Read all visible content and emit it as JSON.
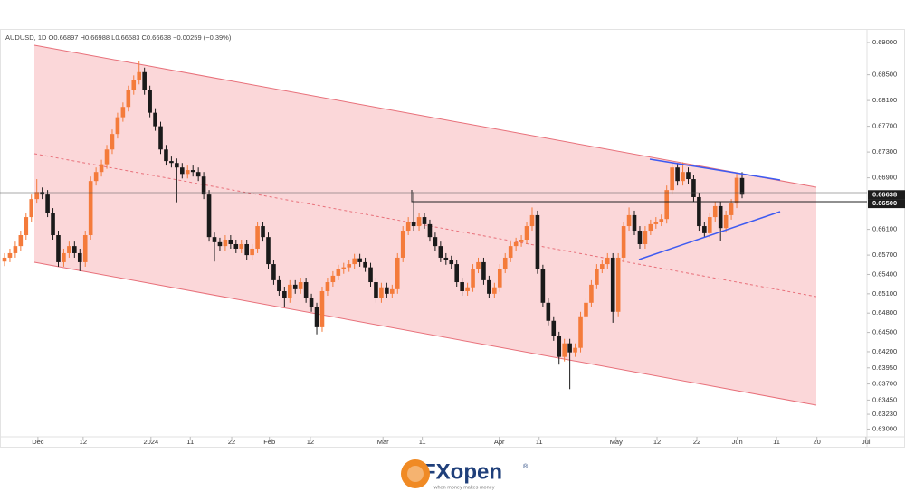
{
  "chart_data": {
    "type": "candlestick",
    "title": "AUDUSD, 1D  O0.66897  H0.66988  L0.66583  C0.66638  −0.00259 (−0.39%)",
    "up_color": "#f47b3b",
    "down_color": "#1a1a1a",
    "ylim": [
      0.6288,
      0.692
    ],
    "xlim": [
      -0.84,
      160.2
    ],
    "yticks": [
      {
        "value": 0.69,
        "label": "0.69000"
      },
      {
        "value": 0.685,
        "label": "0.68500"
      },
      {
        "value": 0.681,
        "label": "0.68100"
      },
      {
        "value": 0.677,
        "label": "0.67700"
      },
      {
        "value": 0.673,
        "label": "0.67300"
      },
      {
        "value": 0.669,
        "label": "0.66900"
      },
      {
        "value": 0.661,
        "label": "0.66100"
      },
      {
        "value": 0.657,
        "label": "0.65700"
      },
      {
        "value": 0.654,
        "label": "0.65400"
      },
      {
        "value": 0.651,
        "label": "0.65100"
      },
      {
        "value": 0.648,
        "label": "0.64800"
      },
      {
        "value": 0.645,
        "label": "0.64500"
      },
      {
        "value": 0.642,
        "label": "0.64200"
      },
      {
        "value": 0.6395,
        "label": "0.63950"
      },
      {
        "value": 0.637,
        "label": "0.63700"
      },
      {
        "value": 0.6345,
        "label": "0.63450"
      },
      {
        "value": 0.6323,
        "label": "0.63230"
      },
      {
        "value": 0.63,
        "label": "0.63000"
      }
    ],
    "price_labels": [
      {
        "value": 0.66638,
        "label": "0.66638"
      },
      {
        "value": 0.665,
        "label": "0.66500"
      }
    ],
    "xticks": [
      {
        "value": 6.2,
        "label": "Dec"
      },
      {
        "value": 14.6,
        "label": "12"
      },
      {
        "value": 27.2,
        "label": "2024"
      },
      {
        "value": 34.5,
        "label": "11"
      },
      {
        "value": 42.2,
        "label": "22"
      },
      {
        "value": 49.2,
        "label": "Feb"
      },
      {
        "value": 56.8,
        "label": "12"
      },
      {
        "value": 70.3,
        "label": "Mar"
      },
      {
        "value": 77.6,
        "label": "11"
      },
      {
        "value": 91.9,
        "label": "Apr"
      },
      {
        "value": 99.3,
        "label": "11"
      },
      {
        "value": 113.6,
        "label": "May"
      },
      {
        "value": 121.2,
        "label": "12"
      },
      {
        "value": 128.6,
        "label": "22"
      },
      {
        "value": 136.1,
        "label": "Jun"
      },
      {
        "value": 143.4,
        "label": "11"
      },
      {
        "value": 150.9,
        "label": "20"
      },
      {
        "value": 160,
        "label": "Jul"
      }
    ],
    "ohlc": [
      [
        0.656,
        0.6573,
        0.6553,
        0.6566
      ],
      [
        0.6566,
        0.658,
        0.6559,
        0.6573
      ],
      [
        0.6573,
        0.6591,
        0.6566,
        0.6584
      ],
      [
        0.6584,
        0.6608,
        0.6577,
        0.6601
      ],
      [
        0.6601,
        0.6636,
        0.6594,
        0.6629
      ],
      [
        0.6629,
        0.6664,
        0.6622,
        0.6657
      ],
      [
        0.6657,
        0.6688,
        0.665,
        0.6668
      ],
      [
        0.6668,
        0.6675,
        0.6657,
        0.6664
      ],
      [
        0.6664,
        0.6671,
        0.6629,
        0.6636
      ],
      [
        0.6636,
        0.6643,
        0.6594,
        0.6601
      ],
      [
        0.6601,
        0.6608,
        0.6552,
        0.6559
      ],
      [
        0.6559,
        0.658,
        0.6552,
        0.6573
      ],
      [
        0.6573,
        0.6591,
        0.6566,
        0.6584
      ],
      [
        0.6584,
        0.6591,
        0.6566,
        0.6573
      ],
      [
        0.6573,
        0.658,
        0.6545,
        0.6559
      ],
      [
        0.6559,
        0.6608,
        0.6552,
        0.6601
      ],
      [
        0.6601,
        0.6692,
        0.6594,
        0.6685
      ],
      [
        0.6685,
        0.6706,
        0.6678,
        0.6699
      ],
      [
        0.6699,
        0.6718,
        0.6692,
        0.6711
      ],
      [
        0.6711,
        0.6741,
        0.6704,
        0.6734
      ],
      [
        0.6734,
        0.6765,
        0.6727,
        0.6758
      ],
      [
        0.6758,
        0.6791,
        0.6751,
        0.6784
      ],
      [
        0.6784,
        0.6807,
        0.6777,
        0.68
      ],
      [
        0.68,
        0.6833,
        0.6793,
        0.6826
      ],
      [
        0.6826,
        0.6849,
        0.6819,
        0.6842
      ],
      [
        0.6842,
        0.6871,
        0.6835,
        0.6854
      ],
      [
        0.6854,
        0.6861,
        0.6819,
        0.6826
      ],
      [
        0.6826,
        0.6833,
        0.6784,
        0.6791
      ],
      [
        0.6791,
        0.6798,
        0.6763,
        0.677
      ],
      [
        0.677,
        0.6777,
        0.6727,
        0.6734
      ],
      [
        0.6734,
        0.6741,
        0.6709,
        0.6716
      ],
      [
        0.6716,
        0.6723,
        0.6706,
        0.6713
      ],
      [
        0.6713,
        0.672,
        0.6652,
        0.6706
      ],
      [
        0.6706,
        0.6713,
        0.6689,
        0.6696
      ],
      [
        0.6696,
        0.6709,
        0.6689,
        0.6702
      ],
      [
        0.6702,
        0.6709,
        0.6692,
        0.6699
      ],
      [
        0.6699,
        0.6706,
        0.6685,
        0.6692
      ],
      [
        0.6692,
        0.6699,
        0.6657,
        0.6664
      ],
      [
        0.6664,
        0.6671,
        0.6591,
        0.6598
      ],
      [
        0.6598,
        0.6605,
        0.656,
        0.659
      ],
      [
        0.659,
        0.6597,
        0.6577,
        0.6584
      ],
      [
        0.6584,
        0.6601,
        0.6577,
        0.6594
      ],
      [
        0.6594,
        0.6601,
        0.658,
        0.6587
      ],
      [
        0.6587,
        0.6594,
        0.6573,
        0.658
      ],
      [
        0.658,
        0.6594,
        0.6573,
        0.6587
      ],
      [
        0.6587,
        0.6594,
        0.6563,
        0.657
      ],
      [
        0.657,
        0.6587,
        0.6563,
        0.658
      ],
      [
        0.658,
        0.6622,
        0.6573,
        0.6615
      ],
      [
        0.6615,
        0.6622,
        0.6591,
        0.6598
      ],
      [
        0.6598,
        0.6605,
        0.6549,
        0.6556
      ],
      [
        0.6556,
        0.6563,
        0.6524,
        0.6531
      ],
      [
        0.6531,
        0.6538,
        0.6507,
        0.6514
      ],
      [
        0.6514,
        0.6521,
        0.6489,
        0.6503
      ],
      [
        0.6503,
        0.6531,
        0.6496,
        0.6524
      ],
      [
        0.6524,
        0.6531,
        0.651,
        0.6517
      ],
      [
        0.6517,
        0.6535,
        0.651,
        0.6528
      ],
      [
        0.6528,
        0.6535,
        0.6496,
        0.6503
      ],
      [
        0.6503,
        0.651,
        0.6482,
        0.6489
      ],
      [
        0.6489,
        0.6496,
        0.6447,
        0.6458
      ],
      [
        0.6458,
        0.6521,
        0.6451,
        0.6514
      ],
      [
        0.6514,
        0.6535,
        0.6507,
        0.6528
      ],
      [
        0.6528,
        0.6545,
        0.6521,
        0.6538
      ],
      [
        0.6538,
        0.6555,
        0.6531,
        0.6548
      ],
      [
        0.6548,
        0.6558,
        0.6541,
        0.6551
      ],
      [
        0.6551,
        0.6563,
        0.6544,
        0.6556
      ],
      [
        0.6556,
        0.6572,
        0.6549,
        0.6565
      ],
      [
        0.6565,
        0.6572,
        0.6552,
        0.6559
      ],
      [
        0.6559,
        0.6566,
        0.6544,
        0.6551
      ],
      [
        0.6551,
        0.6558,
        0.6521,
        0.6528
      ],
      [
        0.6528,
        0.6535,
        0.6496,
        0.6503
      ],
      [
        0.6503,
        0.6527,
        0.6496,
        0.652
      ],
      [
        0.652,
        0.6527,
        0.6503,
        0.651
      ],
      [
        0.651,
        0.6524,
        0.6503,
        0.6517
      ],
      [
        0.6517,
        0.6573,
        0.651,
        0.6566
      ],
      [
        0.6566,
        0.6615,
        0.6559,
        0.6608
      ],
      [
        0.6608,
        0.6629,
        0.6601,
        0.6622
      ],
      [
        0.6622,
        0.6668,
        0.6608,
        0.6615
      ],
      [
        0.6615,
        0.6636,
        0.6608,
        0.6629
      ],
      [
        0.6629,
        0.6636,
        0.6611,
        0.6618
      ],
      [
        0.6618,
        0.6625,
        0.6591,
        0.6598
      ],
      [
        0.6598,
        0.6605,
        0.6577,
        0.6584
      ],
      [
        0.6584,
        0.6591,
        0.6559,
        0.6566
      ],
      [
        0.6566,
        0.6573,
        0.6555,
        0.6562
      ],
      [
        0.6562,
        0.6569,
        0.6549,
        0.6556
      ],
      [
        0.6556,
        0.6563,
        0.6521,
        0.6528
      ],
      [
        0.6528,
        0.6535,
        0.6507,
        0.6514
      ],
      [
        0.6514,
        0.6527,
        0.6507,
        0.652
      ],
      [
        0.652,
        0.6556,
        0.6513,
        0.6549
      ],
      [
        0.6549,
        0.6566,
        0.6542,
        0.6559
      ],
      [
        0.6559,
        0.6566,
        0.6524,
        0.6531
      ],
      [
        0.6531,
        0.6538,
        0.6503,
        0.651
      ],
      [
        0.651,
        0.6527,
        0.6503,
        0.652
      ],
      [
        0.652,
        0.6556,
        0.6513,
        0.6549
      ],
      [
        0.6549,
        0.6573,
        0.6542,
        0.6566
      ],
      [
        0.6566,
        0.6591,
        0.6559,
        0.6584
      ],
      [
        0.6584,
        0.6597,
        0.6577,
        0.659
      ],
      [
        0.659,
        0.6601,
        0.6583,
        0.6594
      ],
      [
        0.6594,
        0.6622,
        0.6587,
        0.6615
      ],
      [
        0.6615,
        0.6644,
        0.6608,
        0.6632
      ],
      [
        0.6632,
        0.6639,
        0.6541,
        0.6548
      ],
      [
        0.6548,
        0.6555,
        0.6489,
        0.6496
      ],
      [
        0.6496,
        0.6503,
        0.6461,
        0.6468
      ],
      [
        0.6468,
        0.6475,
        0.6437,
        0.6444
      ],
      [
        0.6444,
        0.6451,
        0.64,
        0.6412
      ],
      [
        0.6412,
        0.644,
        0.6405,
        0.6433
      ],
      [
        0.6433,
        0.644,
        0.6362,
        0.6419
      ],
      [
        0.6419,
        0.6433,
        0.6412,
        0.6426
      ],
      [
        0.6426,
        0.6482,
        0.6419,
        0.6475
      ],
      [
        0.6475,
        0.6503,
        0.6468,
        0.6496
      ],
      [
        0.6496,
        0.6531,
        0.6489,
        0.6524
      ],
      [
        0.6524,
        0.6556,
        0.6517,
        0.6549
      ],
      [
        0.6549,
        0.6563,
        0.6542,
        0.6556
      ],
      [
        0.6556,
        0.6573,
        0.6549,
        0.6566
      ],
      [
        0.6566,
        0.6573,
        0.6465,
        0.6482
      ],
      [
        0.6482,
        0.6573,
        0.6475,
        0.6566
      ],
      [
        0.6566,
        0.6622,
        0.6559,
        0.6615
      ],
      [
        0.6615,
        0.6644,
        0.6608,
        0.6632
      ],
      [
        0.6632,
        0.6639,
        0.6601,
        0.6608
      ],
      [
        0.6608,
        0.6615,
        0.658,
        0.6587
      ],
      [
        0.6587,
        0.6615,
        0.658,
        0.6608
      ],
      [
        0.6608,
        0.6625,
        0.6601,
        0.6618
      ],
      [
        0.6618,
        0.6629,
        0.6611,
        0.6622
      ],
      [
        0.6622,
        0.6633,
        0.6615,
        0.6626
      ],
      [
        0.6626,
        0.6678,
        0.6619,
        0.6671
      ],
      [
        0.6671,
        0.6713,
        0.6664,
        0.6706
      ],
      [
        0.6706,
        0.6713,
        0.6678,
        0.6685
      ],
      [
        0.6685,
        0.6714,
        0.6678,
        0.6699
      ],
      [
        0.6699,
        0.6706,
        0.6681,
        0.6688
      ],
      [
        0.6688,
        0.6695,
        0.6653,
        0.666
      ],
      [
        0.666,
        0.6667,
        0.6608,
        0.6615
      ],
      [
        0.6615,
        0.6622,
        0.6597,
        0.6604
      ],
      [
        0.6604,
        0.6636,
        0.6597,
        0.6629
      ],
      [
        0.6629,
        0.6653,
        0.6622,
        0.6646
      ],
      [
        0.6646,
        0.6653,
        0.6592,
        0.6612
      ],
      [
        0.6612,
        0.6639,
        0.6605,
        0.6632
      ],
      [
        0.6632,
        0.6657,
        0.6625,
        0.665
      ],
      [
        0.665,
        0.6697,
        0.6643,
        0.669
      ],
      [
        0.66897,
        0.66988,
        0.66583,
        0.66638
      ]
    ]
  },
  "footer": {
    "brand": "FXopen",
    "mark": "®",
    "tagline": "when money makes money"
  }
}
